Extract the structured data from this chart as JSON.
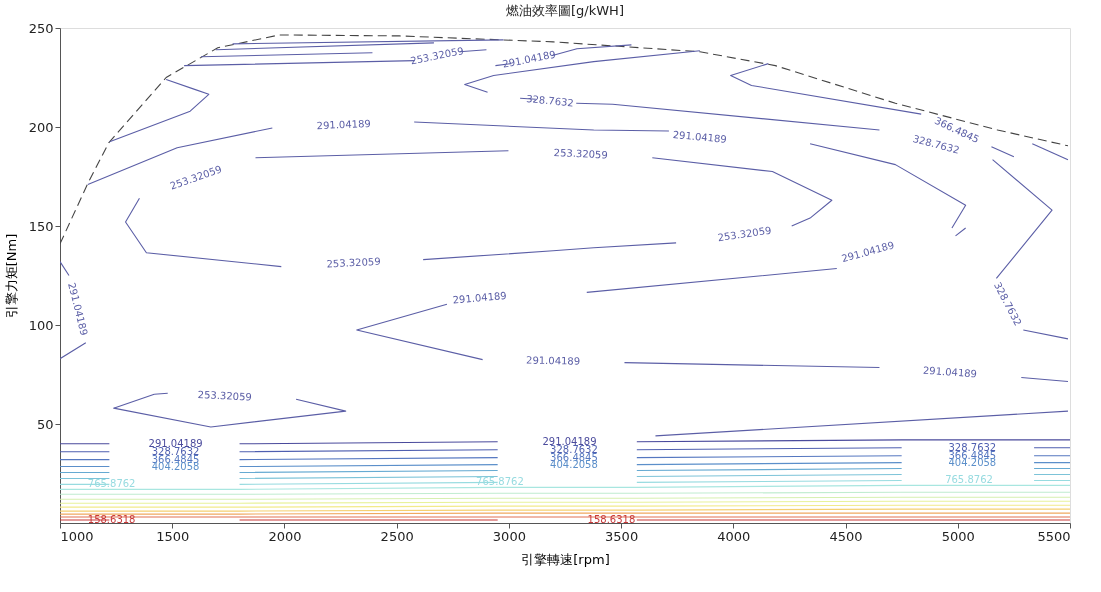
{
  "chart_data": {
    "type": "line",
    "title": "燃油效率圖[g/kWH]",
    "xlabel": "引擎轉速[rpm]",
    "ylabel": "引擎力矩[Nm]",
    "xlim": [
      1000,
      5500
    ],
    "xticks": [
      1000,
      1500,
      2000,
      2500,
      3000,
      3500,
      4000,
      4500,
      5000,
      5500
    ],
    "ylim": [
      0,
      250
    ],
    "yticks": [
      50,
      100,
      150,
      200,
      250
    ],
    "grid": false,
    "series": [
      {
        "color": "#444444",
        "line_style": "dashed",
        "x": [
          1000,
          1124,
          1217,
          1473,
          1703,
          1977,
          2512,
          2967,
          3197,
          3851,
          4187,
          4722,
          5177,
          5491
        ],
        "values": [
          141,
          171.5,
          192,
          225,
          240,
          246.5,
          246,
          244,
          243,
          238,
          231,
          212,
          198.5,
          190.5
        ]
      },
      {
        "color": "#5b5ea6",
        "x": [
          1769,
          2976
        ],
        "values": [
          242,
          244
        ]
      },
      {
        "color": "#5b5ea6",
        "x": [
          1694,
          2666
        ],
        "values": [
          239,
          242.5
        ]
      },
      {
        "color": "#5b5ea6",
        "x": [
          1628,
          2392
        ],
        "values": [
          235.5,
          237.5
        ]
      },
      {
        "name": "253.32059",
        "color": "#5b5ea6",
        "x": [
          1553,
          2580,
          2680,
          2780,
          2900
        ],
        "values": [
          231,
          233.5,
          null,
          238,
          239
        ]
      },
      {
        "name": "291.04189",
        "color": "#5b5ea6",
        "x": [
          2940,
          3010,
          3090,
          3190,
          3303,
          3546
        ],
        "values": [
          231,
          232,
          null,
          236,
          239.5,
          241.5
        ]
      },
      {
        "color": "#5b5ea6",
        "x": [
          2905,
          2803,
          2932,
          3378,
          3851
        ],
        "values": [
          217.5,
          221.5,
          226,
          233,
          238.5
        ]
      },
      {
        "name": "366.4845",
        "color": "#5b5ea6",
        "x": [
          4156,
          3988,
          4081,
          4837,
          4995,
          5150,
          5250
        ],
        "values": [
          232,
          226,
          221,
          206.5,
          null,
          190,
          185
        ]
      },
      {
        "color": "#5b5ea6",
        "x": [
          1473,
          1600,
          1663,
          1580,
          1221
        ],
        "values": [
          224,
          219,
          216.5,
          208,
          192.5
        ]
      },
      {
        "name": "291.04189",
        "color": "#5b5ea6",
        "x": [
          1124,
          1522,
          1946,
          2264,
          2578,
          3378,
          3713,
          3850,
          4342,
          4722,
          5035,
          4974
        ],
        "values": [
          171,
          189.5,
          199.5,
          null,
          202.5,
          198.5,
          198,
          null,
          191.5,
          181,
          160.5,
          149
        ]
      },
      {
        "name": "328.7632",
        "color": "#5b5ea6",
        "x": [
          3050,
          3120,
          3183,
          3300,
          3462,
          4651,
          4903,
          5155,
          5420,
          5172,
          5221,
          5292,
          5491
        ],
        "values": [
          214.5,
          214,
          null,
          212,
          211.5,
          198.5,
          null,
          183.5,
          158,
          123.5,
          null,
          97.5,
          93
        ]
      },
      {
        "color": "#5b5ea6",
        "x": [
          5332,
          5491
        ],
        "values": [
          191.5,
          183.5
        ]
      },
      {
        "name": "253.32059",
        "color": "#5b5ea6",
        "x": [
          4342,
          4439,
          4174,
          3639,
          3320,
          2998,
          1871,
          1606,
          1354,
          1292,
          1385,
          1986,
          2308,
          2618,
          3197,
          3378,
          3745,
          4050,
          4260,
          4342
        ],
        "values": [
          154,
          163,
          177.5,
          184.5,
          null,
          188,
          184.5,
          null,
          164,
          152,
          136.5,
          129.5,
          null,
          133,
          137.5,
          139,
          141.5,
          null,
          150,
          154
        ]
      },
      {
        "name": "291.04189",
        "color": "#5b5ea6",
        "x": [
          5035,
          4990,
          4600,
          4461,
          3347,
          2870,
          2724,
          2322,
          2883,
          3197,
          3515,
          4651,
          4965,
          5283,
          5491
        ],
        "values": [
          149,
          145,
          null,
          128.5,
          116.5,
          null,
          110.5,
          97.5,
          82.5,
          null,
          81,
          78.5,
          null,
          73.5,
          71.5
        ]
      },
      {
        "name": "291.04189",
        "color": "#5b5ea6",
        "x": [
          1000,
          1040,
          1078,
          1115,
          1000
        ],
        "values": [
          132,
          125,
          null,
          91,
          83
        ]
      },
      {
        "name": "253.32059",
        "color": "#5b5ea6",
        "x": [
          1420,
          1239,
          1672,
          2273,
          2052,
          1734,
          1480,
          1420
        ],
        "values": [
          65,
          58,
          48.5,
          56.5,
          62.5,
          null,
          65.5,
          65
        ]
      },
      {
        "color": "#5b5ea6",
        "x": [
          3653,
          5491
        ],
        "values": [
          44,
          56.5
        ]
      },
      {
        "name": "291.04189",
        "color": "#4a4a9c",
        "x": [
          1000,
          1220,
          1515,
          1800,
          2950,
          3270,
          3570,
          4750,
          5500
        ],
        "values": [
          40,
          40,
          null,
          40,
          41,
          null,
          41,
          42,
          42
        ]
      },
      {
        "name": "328.7632",
        "color": "#4f5fb0",
        "x": [
          1000,
          1220,
          1515,
          1800,
          2950,
          3290,
          3570,
          4750,
          5065,
          5340,
          5500
        ],
        "values": [
          36,
          36,
          null,
          36,
          37,
          null,
          37,
          38,
          null,
          38,
          38
        ]
      },
      {
        "name": "366.4845",
        "color": "#5577c0",
        "x": [
          1000,
          1220,
          1515,
          1800,
          2950,
          3290,
          3570,
          4750,
          5065,
          5340,
          5500
        ],
        "values": [
          32,
          32,
          null,
          32,
          33,
          null,
          33,
          34,
          null,
          34,
          34
        ]
      },
      {
        "name": "404.2058",
        "color": "#5b8fca",
        "x": [
          1000,
          1220,
          1515,
          1800,
          2950,
          3290,
          3570,
          4750,
          5065,
          5340,
          5500
        ],
        "values": [
          28.5,
          28.5,
          null,
          28.5,
          29.5,
          null,
          29.5,
          30.5,
          null,
          30.5,
          30.5
        ]
      },
      {
        "color": "#66aad2",
        "x": [
          1000,
          1220,
          1230,
          1800,
          2950,
          2960,
          3570,
          4750,
          4760,
          5340,
          5500
        ],
        "values": [
          25.5,
          25.5,
          null,
          25.5,
          26.5,
          null,
          26.5,
          27.5,
          null,
          27.5,
          27.5
        ]
      },
      {
        "color": "#7cc3d8",
        "x": [
          1000,
          1220,
          1230,
          1800,
          2950,
          2960,
          3570,
          4750,
          4760,
          5340,
          5500
        ],
        "values": [
          22.5,
          22.5,
          null,
          22.5,
          23.5,
          null,
          23.5,
          24.5,
          null,
          24.5,
          24.5
        ]
      },
      {
        "name": "765.8762",
        "color": "#97dbe0",
        "x": [
          1000,
          1220,
          1230,
          1800,
          2950,
          2960,
          3570,
          4750,
          5050,
          5340,
          5500
        ],
        "values": [
          19.5,
          19.5,
          null,
          19.5,
          20.5,
          null,
          20.5,
          21.5,
          null,
          21.5,
          21.5
        ]
      },
      {
        "color": "#a8e6e0",
        "x": [
          1000,
          1220,
          1800,
          2950,
          3570,
          4750,
          5500
        ],
        "values": [
          17,
          17,
          17,
          18,
          18,
          19,
          19
        ]
      },
      {
        "color": "#c0ecd0",
        "x": [
          1000,
          1220,
          1800,
          2950,
          3570,
          4750,
          5500
        ],
        "values": [
          14.5,
          14.5,
          14.5,
          15,
          15,
          15.5,
          15.5
        ]
      },
      {
        "color": "#d6f0b0",
        "x": [
          1000,
          1220,
          1800,
          2950,
          3570,
          4750,
          5500
        ],
        "values": [
          12,
          12,
          12,
          12.5,
          12.5,
          13,
          13
        ]
      },
      {
        "color": "#e8f29a",
        "x": [
          1000,
          1220,
          1800,
          2950,
          3570,
          4750,
          5500
        ],
        "values": [
          10,
          10,
          10,
          10.5,
          10.5,
          11,
          11
        ]
      },
      {
        "color": "#f2ea8a",
        "x": [
          1000,
          1220,
          1800,
          2950,
          3570,
          4750,
          5500
        ],
        "values": [
          8,
          8,
          8,
          8.5,
          8.5,
          9,
          9
        ]
      },
      {
        "color": "#f5d070",
        "x": [
          1000,
          1220,
          1800,
          2950,
          3570,
          4750,
          5500
        ],
        "values": [
          6,
          6,
          6,
          6.5,
          6.5,
          7,
          7
        ]
      },
      {
        "color": "#f0a860",
        "x": [
          1000,
          1220,
          1800,
          2950,
          3570,
          4750,
          5500
        ],
        "values": [
          4.5,
          4.5,
          4.5,
          5,
          5,
          5,
          5
        ]
      },
      {
        "color": "#e27050",
        "x": [
          1000,
          1220,
          1800,
          2950,
          3570,
          4750,
          5500
        ],
        "values": [
          3,
          3,
          3,
          3,
          3,
          3,
          3
        ]
      },
      {
        "name": "158.6318",
        "color": "#c83838",
        "x": [
          1000,
          1220,
          1230,
          1800,
          2950,
          3457,
          3570,
          4750,
          5500
        ],
        "values": [
          1.5,
          1.5,
          null,
          1.5,
          1.5,
          null,
          1.5,
          1.5,
          1.5
        ]
      }
    ]
  }
}
